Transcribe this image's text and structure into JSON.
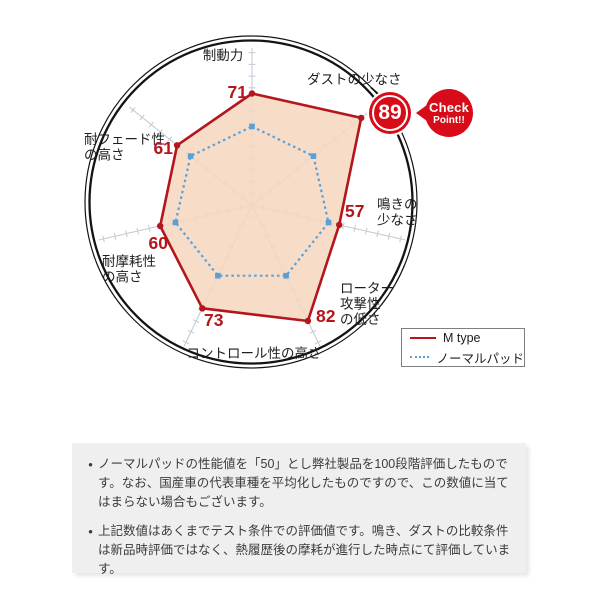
{
  "chart_data": {
    "type": "radar",
    "title": "",
    "max": 100,
    "grid": "circle-with-7-spokes",
    "legend_position": "right-bottom",
    "axes": [
      {
        "label": "制動力",
        "label_lines": [
          "制動力"
        ],
        "value": 71
      },
      {
        "label": "ダストの少なさ",
        "label_lines": [
          "ダストの少なさ"
        ],
        "value": 89
      },
      {
        "label": "鳴きの少なさ",
        "label_lines": [
          "鳴きの",
          "少なさ"
        ],
        "value": 57
      },
      {
        "label": "ローター攻撃性の低さ",
        "label_lines": [
          "ローター",
          "攻撃性",
          "の低さ"
        ],
        "value": 82
      },
      {
        "label": "コントロール性の高さ",
        "label_lines": [
          "コントロール性の高さ"
        ],
        "value": 73
      },
      {
        "label": "耐摩耗性の高さ",
        "label_lines": [
          "耐摩耗性",
          "の高さ"
        ],
        "value": 60
      },
      {
        "label": "耐フェード性の高さ",
        "label_lines": [
          "耐フェード性",
          "の高さ"
        ],
        "value": 61
      }
    ],
    "series": [
      {
        "name": "M type",
        "style": "solid",
        "color": "#b3161c",
        "values": [
          71,
          89,
          57,
          82,
          73,
          60,
          61
        ]
      },
      {
        "name": "ノーマルパッド",
        "style": "dotted",
        "color": "#5aa0d8",
        "values": [
          50,
          50,
          50,
          50,
          50,
          50,
          50
        ]
      }
    ]
  },
  "badge": {
    "value": "89",
    "callout_line1": "Check",
    "callout_line2": "Point!!",
    "color": "#d70c18"
  },
  "legend": {
    "items": [
      {
        "label": "M type"
      },
      {
        "label": "ノーマルパッド"
      }
    ]
  },
  "notes": {
    "items": [
      "ノーマルパッドの性能値を「50」とし弊社製品を100段階評価したものです。なお、国産車の代表車種を平均化したものですので、この数値に当てはまらない場合もございます。",
      "上記数値はあくまでテスト条件での評価値です。鳴き、ダストの比較条件は新品時評価ではなく、熱履歴後の摩耗が進行した時点にて評価しています。"
    ]
  },
  "colors": {
    "line_red": "#b3161c",
    "badge_red": "#d70c18",
    "normal_blue": "#5aa0d8",
    "fill_peach": "#f6d7c0",
    "axis_gray": "#c6ccd4",
    "ring_black": "#141414",
    "panel_gray": "#efeff0"
  }
}
